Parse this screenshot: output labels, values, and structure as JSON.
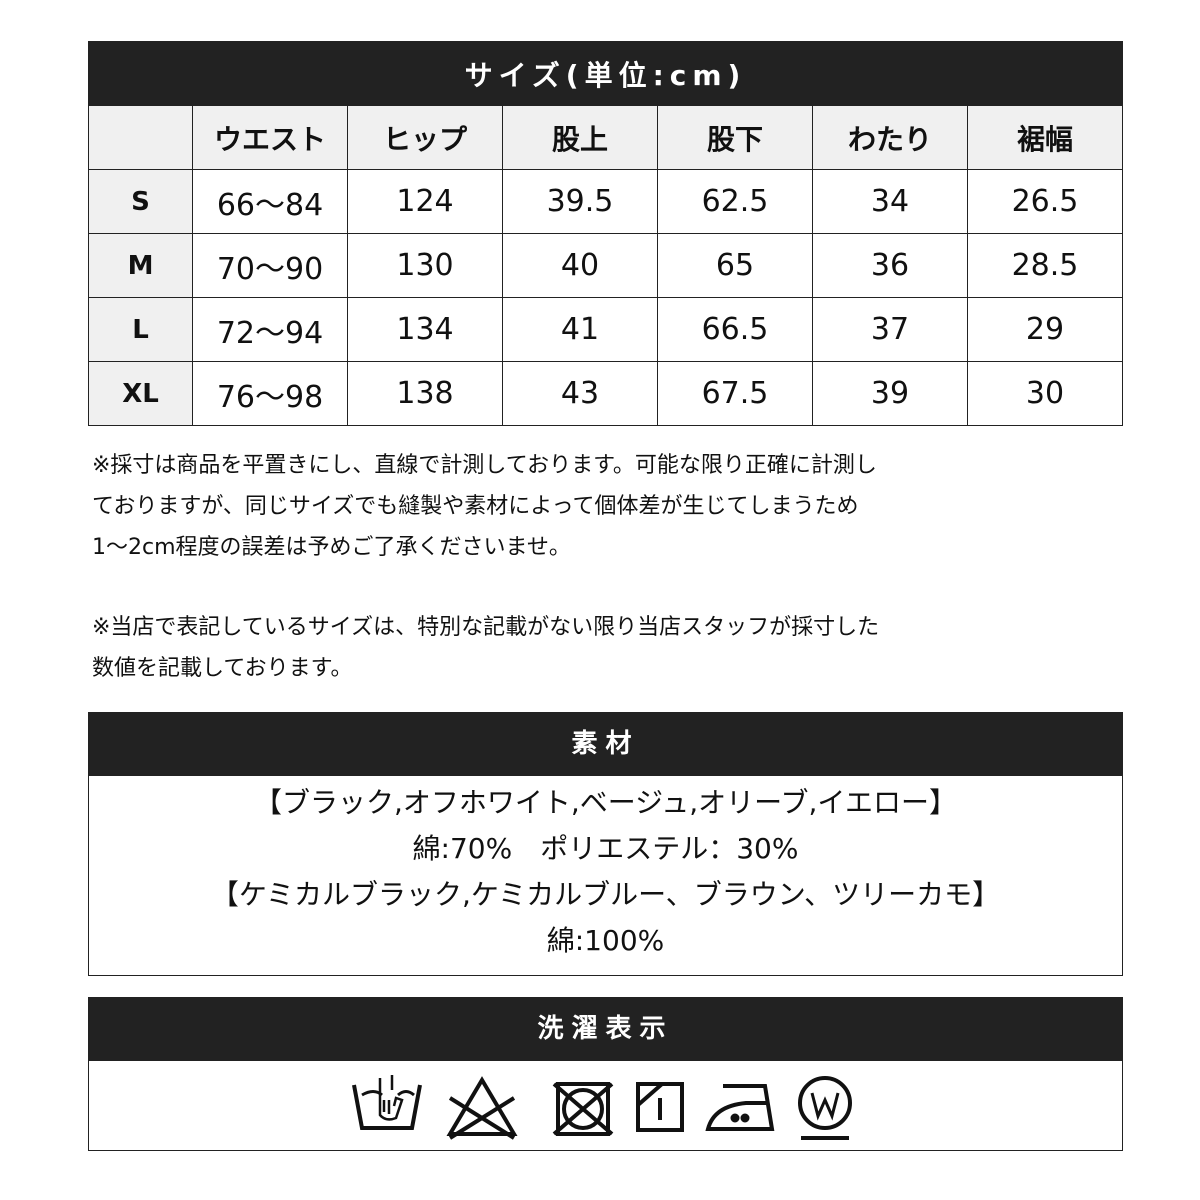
{
  "size_table": {
    "title": "サイズ(単位:cm)",
    "columns": [
      "",
      "ウエスト",
      "ヒップ",
      "股上",
      "股下",
      "わたり",
      "裾幅"
    ],
    "rows": [
      [
        "S",
        "66〜84",
        "124",
        "39.5",
        "62.5",
        "34",
        "26.5"
      ],
      [
        "M",
        "70〜90",
        "130",
        "40",
        "65",
        "36",
        "28.5"
      ],
      [
        "L",
        "72〜94",
        "134",
        "41",
        "66.5",
        "37",
        "29"
      ],
      [
        "XL",
        "76〜98",
        "138",
        "43",
        "67.5",
        "39",
        "30"
      ]
    ]
  },
  "notes": {
    "note1": [
      "※採寸は商品を平置きにし、直線で計測しております。可能な限り正確に計測し",
      "ておりますが、同じサイズでも縫製や素材によって個体差が生じてしまうため",
      "1〜2cm程度の誤差は予めご了承くださいませ。"
    ],
    "note2": [
      "※当店で表記しているサイズは、特別な記載がない限り当店スタッフが採寸した",
      "数値を記載しております。"
    ]
  },
  "material": {
    "title": "素材",
    "lines": [
      "【ブラック,オフホワイト,ベージュ,オリーブ,イエロー】",
      "綿:70%　ポリエステル：30%",
      "【ケミカルブラック,ケミカルブルー、ブラウン、ツリーカモ】",
      "綿:100%"
    ]
  },
  "care": {
    "title": "洗濯表示",
    "icons": [
      "hand-wash-icon",
      "no-bleach-icon",
      "no-tumble-dry-icon",
      "shade-line-dry-icon",
      "iron-low-icon",
      "wet-clean-icon"
    ]
  }
}
